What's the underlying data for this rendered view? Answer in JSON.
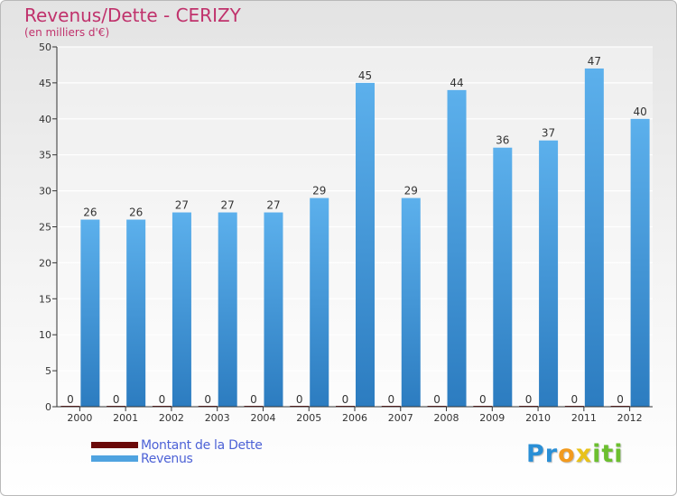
{
  "chart_data": {
    "type": "bar",
    "title": "Revenus/Dette - CERIZY",
    "subtitle": "(en milliers d'€)",
    "categories": [
      "2000",
      "2001",
      "2002",
      "2003",
      "2004",
      "2005",
      "2006",
      "2007",
      "2008",
      "2009",
      "2010",
      "2011",
      "2012"
    ],
    "series": [
      {
        "name": "Montant de la Dette",
        "color": "#6b0a0a",
        "values": [
          0,
          0,
          0,
          0,
          0,
          0,
          0,
          0,
          0,
          0,
          0,
          0,
          0
        ]
      },
      {
        "name": "Revenus",
        "color": "#4fa3e0",
        "values": [
          26,
          26,
          27,
          27,
          27,
          29,
          45,
          29,
          44,
          36,
          37,
          47,
          40
        ]
      }
    ],
    "ylim": [
      0,
      50
    ],
    "yticks": [
      0,
      5,
      10,
      15,
      20,
      25,
      30,
      35,
      40,
      45,
      50
    ],
    "grid": true,
    "xlabel": "",
    "ylabel": ""
  },
  "legend": {
    "debt_label": "Montant de la Dette",
    "revenue_label": "Revenus"
  },
  "logo": {
    "letters": [
      "P",
      "r",
      "o",
      "x",
      "i",
      "t",
      "i"
    ],
    "colors": [
      "#2a8fd6",
      "#2a8fd6",
      "#f29a1e",
      "#e8c21a",
      "#6cbf2f",
      "#6cbf2f",
      "#6cbf2f"
    ]
  }
}
